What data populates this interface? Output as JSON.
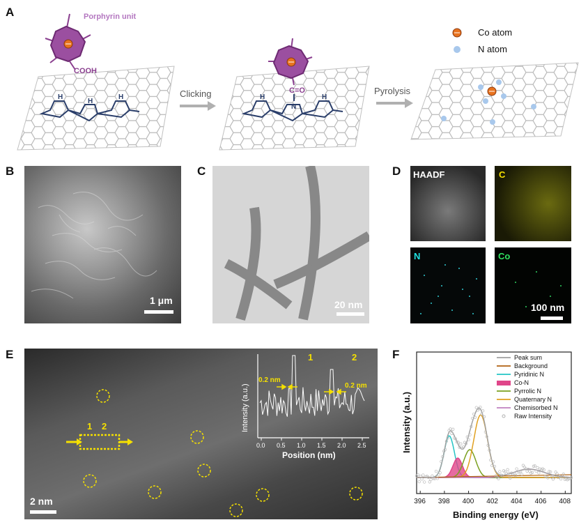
{
  "panels": {
    "a": "A",
    "b": "B",
    "c": "C",
    "d": "D",
    "e": "E",
    "f": "F"
  },
  "panelA": {
    "porphyrin_label": "Porphyrin unit",
    "cooh": "COOH",
    "co_group": "C=O",
    "clicking": "Clicking",
    "pyrolysis": "Pyrolysis",
    "legend_co": "Co atom",
    "legend_n": "N atom",
    "nh": "H",
    "n": "N"
  },
  "panelB": {
    "scale": "1 μm"
  },
  "panelC": {
    "scale": "20 nm"
  },
  "panelD": {
    "haadf": "HAADF",
    "c": "C",
    "n": "N",
    "co": "Co",
    "scale": "100 nm"
  },
  "panelE": {
    "scale": "2 nm",
    "marker1": "1",
    "marker2": "2",
    "inset": {
      "ylabel": "Intensity (a.u.)",
      "xlabel": "Position (nm)",
      "label1": "1",
      "label2": "2",
      "dist1": "0.2 nm",
      "dist2": "0.2 nm",
      "xticks": [
        "0.0",
        "0.5",
        "1.0",
        "1.5",
        "2.0",
        "2.5"
      ]
    }
  },
  "chart_data": {
    "type": "line",
    "xlabel": "Binding energy (eV)",
    "ylabel": "Intensity (a.u.)",
    "xlim": [
      395.7,
      408.5
    ],
    "xticks": [
      396,
      398,
      400,
      402,
      404,
      406,
      408
    ],
    "legend_position": "top-right",
    "series": [
      {
        "name": "Peak sum",
        "color": "#a0a0a0",
        "center": null
      },
      {
        "name": "Background",
        "color": "#b06010",
        "center": null
      },
      {
        "name": "Pyridinic N",
        "color": "#22c4c4",
        "center": 398.4
      },
      {
        "name": "Co-N",
        "color": "#e0468a",
        "center": 399.1
      },
      {
        "name": "Pyrrolic N",
        "color": "#7aa020",
        "center": 400.1
      },
      {
        "name": "Quaternary N",
        "color": "#e0a020",
        "center": 401.0
      },
      {
        "name": "Chemisorbed N",
        "color": "#c080c0",
        "center": 405.0
      },
      {
        "name": "Raw Intensity",
        "color": "#b0b0b0",
        "center": null
      }
    ]
  }
}
